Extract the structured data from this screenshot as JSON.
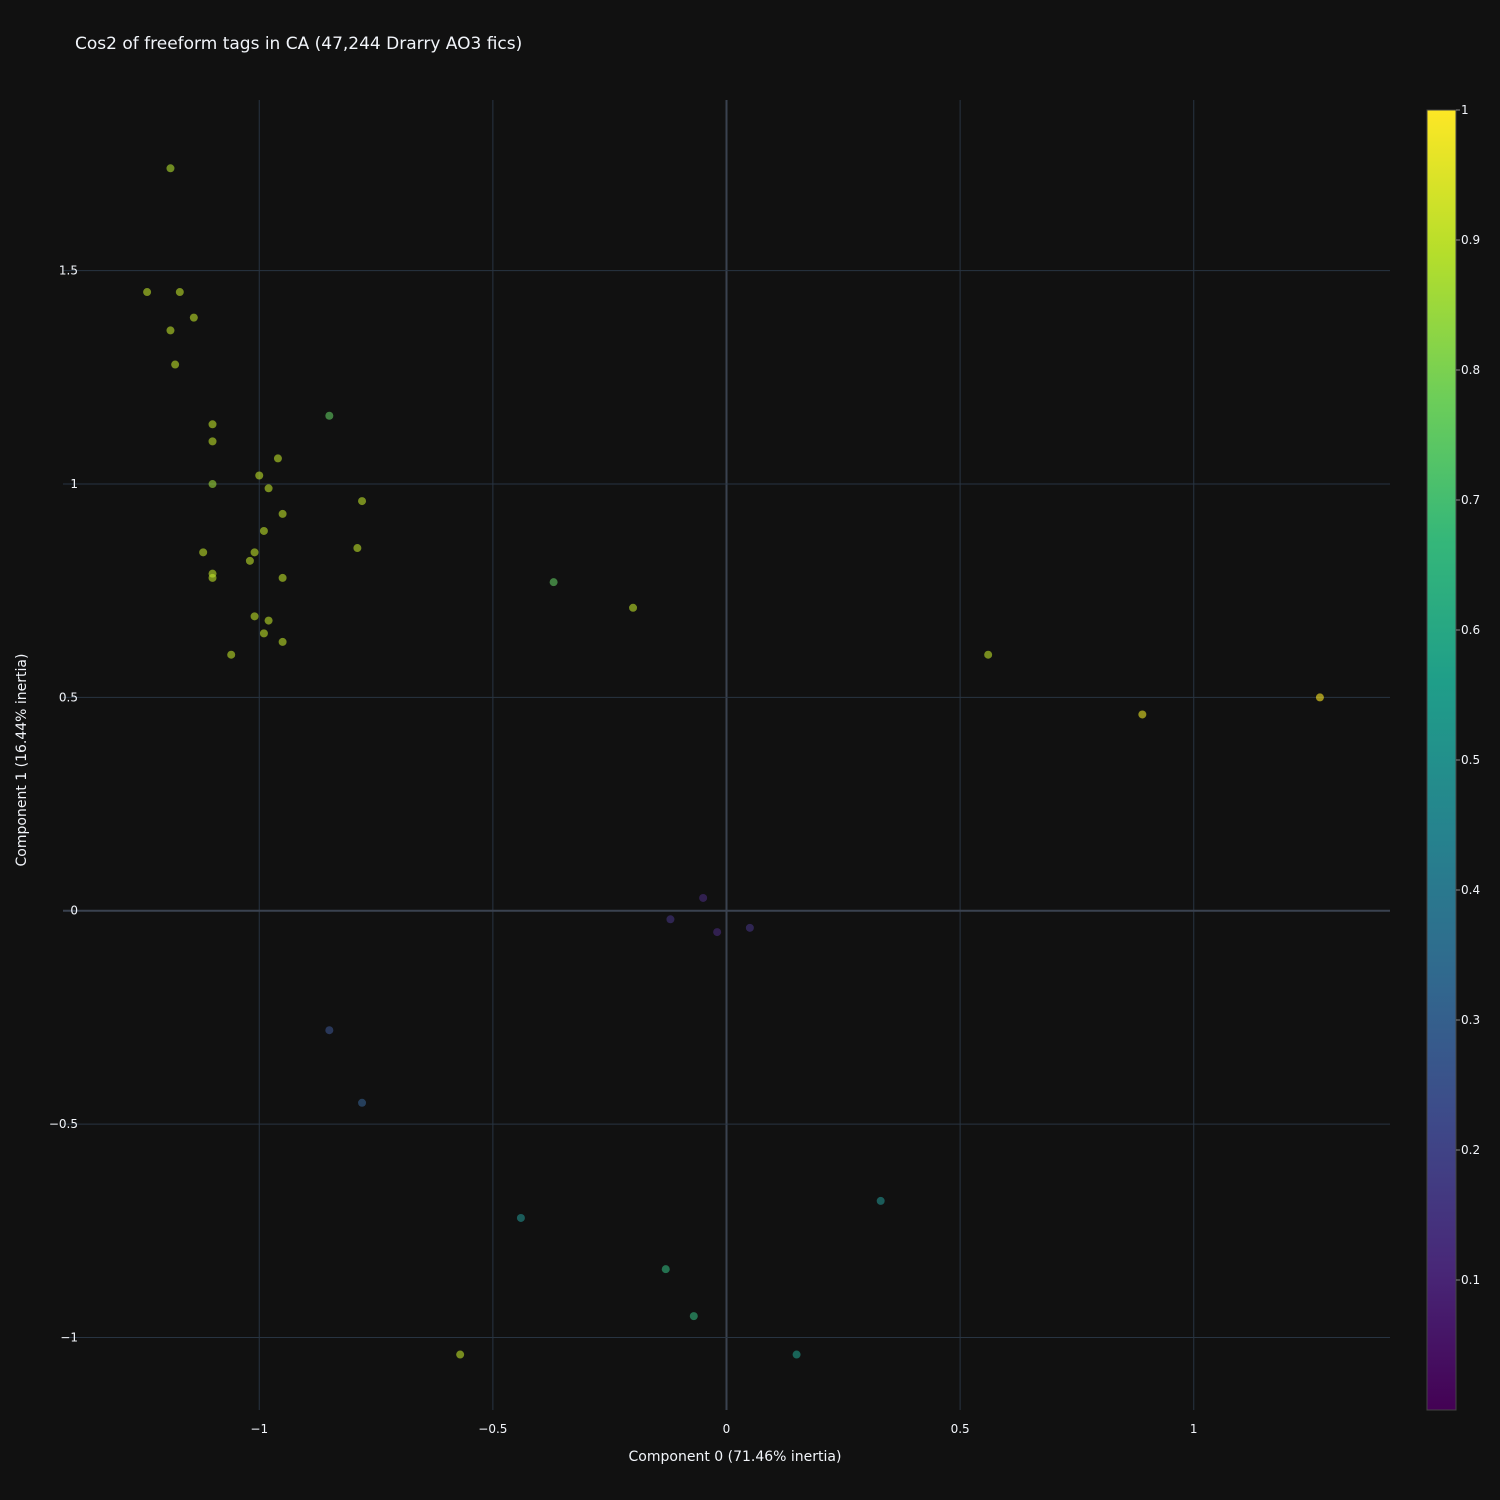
{
  "chart_data": {
    "type": "scatter",
    "title": "Cos2 of freeform tags in CA (47,244 Drarry AO3 fics)",
    "xlabel": "Component 0 (71.46% inertia)",
    "ylabel": "Component 1 (16.44% inertia)",
    "xlim": [
      -1.42,
      1.42
    ],
    "ylim": [
      -1.17,
      1.9
    ],
    "xticks": [
      -1,
      -0.5,
      0,
      0.5,
      1
    ],
    "xtick_labels": [
      "−1",
      "−0.5",
      "0",
      "0.5",
      "1"
    ],
    "yticks": [
      -1,
      -0.5,
      0,
      0.5,
      1,
      1.5
    ],
    "ytick_labels": [
      "−1",
      "−0.5",
      "0",
      "0.5",
      "1",
      "1.5"
    ],
    "grid": true,
    "colorscale": "viridis",
    "color_range": [
      0,
      1
    ],
    "colorbar_ticks": [
      0.1,
      0.2,
      0.3,
      0.4,
      0.5,
      0.6,
      0.7,
      0.8,
      0.9,
      1
    ],
    "colorbar_tick_labels": [
      "0.1",
      "0.2",
      "0.3",
      "0.4",
      "0.5",
      "0.6",
      "0.7",
      "0.8",
      "0.9",
      "1"
    ],
    "marker_opacity": 0.6,
    "points": [
      {
        "x": -1.19,
        "y": 1.74,
        "c": 0.88
      },
      {
        "x": -1.24,
        "y": 1.45,
        "c": 0.9
      },
      {
        "x": -1.17,
        "y": 1.45,
        "c": 0.9
      },
      {
        "x": -1.19,
        "y": 1.36,
        "c": 0.9
      },
      {
        "x": -1.14,
        "y": 1.39,
        "c": 0.9
      },
      {
        "x": -1.18,
        "y": 1.28,
        "c": 0.9
      },
      {
        "x": -1.1,
        "y": 1.14,
        "c": 0.9
      },
      {
        "x": -1.1,
        "y": 1.1,
        "c": 0.9
      },
      {
        "x": -1.1,
        "y": 1.0,
        "c": 0.85
      },
      {
        "x": -0.85,
        "y": 1.16,
        "c": 0.75
      },
      {
        "x": -0.96,
        "y": 1.06,
        "c": 0.9
      },
      {
        "x": -1.0,
        "y": 1.02,
        "c": 0.9
      },
      {
        "x": -0.98,
        "y": 0.99,
        "c": 0.9
      },
      {
        "x": -0.95,
        "y": 0.93,
        "c": 0.9
      },
      {
        "x": -0.78,
        "y": 0.96,
        "c": 0.9
      },
      {
        "x": -1.12,
        "y": 0.84,
        "c": 0.9
      },
      {
        "x": -1.1,
        "y": 0.79,
        "c": 0.9
      },
      {
        "x": -1.1,
        "y": 0.78,
        "c": 0.9
      },
      {
        "x": -1.01,
        "y": 0.84,
        "c": 0.9
      },
      {
        "x": -1.02,
        "y": 0.82,
        "c": 0.9
      },
      {
        "x": -0.99,
        "y": 0.89,
        "c": 0.9
      },
      {
        "x": -0.95,
        "y": 0.78,
        "c": 0.9
      },
      {
        "x": -0.79,
        "y": 0.85,
        "c": 0.9
      },
      {
        "x": -1.06,
        "y": 0.6,
        "c": 0.9
      },
      {
        "x": -0.99,
        "y": 0.65,
        "c": 0.9
      },
      {
        "x": -1.01,
        "y": 0.69,
        "c": 0.9
      },
      {
        "x": -0.98,
        "y": 0.68,
        "c": 0.9
      },
      {
        "x": -0.95,
        "y": 0.63,
        "c": 0.9
      },
      {
        "x": -0.37,
        "y": 0.77,
        "c": 0.75
      },
      {
        "x": -0.2,
        "y": 0.71,
        "c": 0.9
      },
      {
        "x": 0.56,
        "y": 0.6,
        "c": 0.9
      },
      {
        "x": 0.89,
        "y": 0.46,
        "c": 0.97
      },
      {
        "x": 1.27,
        "y": 0.5,
        "c": 1.0
      },
      {
        "x": -0.57,
        "y": -1.04,
        "c": 0.9
      },
      {
        "x": -0.07,
        "y": -0.95,
        "c": 0.65
      },
      {
        "x": 0.15,
        "y": -1.04,
        "c": 0.55
      },
      {
        "x": -0.13,
        "y": -0.84,
        "c": 0.65
      },
      {
        "x": -0.44,
        "y": -0.72,
        "c": 0.5
      },
      {
        "x": 0.33,
        "y": -0.68,
        "c": 0.5
      },
      {
        "x": -0.78,
        "y": -0.45,
        "c": 0.3
      },
      {
        "x": -0.85,
        "y": -0.28,
        "c": 0.25
      },
      {
        "x": -0.12,
        "y": -0.02,
        "c": 0.15
      },
      {
        "x": -0.05,
        "y": 0.03,
        "c": 0.12
      },
      {
        "x": 0.05,
        "y": -0.04,
        "c": 0.15
      },
      {
        "x": -0.02,
        "y": -0.05,
        "c": 0.12
      }
    ]
  }
}
